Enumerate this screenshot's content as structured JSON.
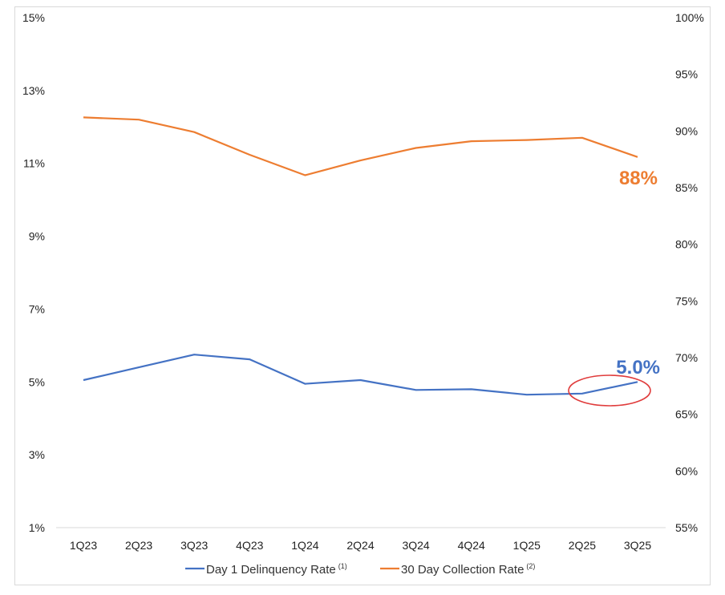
{
  "chart_data": {
    "type": "line",
    "categories": [
      "1Q23",
      "2Q23",
      "3Q23",
      "4Q23",
      "1Q24",
      "2Q24",
      "3Q24",
      "4Q24",
      "1Q25",
      "2Q25",
      "3Q25"
    ],
    "y_left": {
      "ticks": [
        "15%",
        "13%",
        "11%",
        "9%",
        "7%",
        "5%",
        "3%",
        "1%"
      ],
      "range": [
        1,
        15
      ]
    },
    "y_right": {
      "ticks": [
        "100%",
        "95%",
        "90%",
        "85%",
        "80%",
        "75%",
        "70%",
        "65%",
        "60%",
        "55%"
      ],
      "range": [
        55,
        100
      ]
    },
    "series": [
      {
        "name": "Day 1 Delinquency Rate",
        "footnote": "(1)",
        "axis": "left",
        "color": "#4472C4",
        "values": [
          5.05,
          5.4,
          5.75,
          5.62,
          4.95,
          5.05,
          4.78,
          4.8,
          4.65,
          4.68,
          5.0
        ],
        "end_label": "5.0%"
      },
      {
        "name": "30 Day Collection Rate",
        "footnote": "(2)",
        "axis": "right",
        "color": "#ED7D31",
        "values": [
          91.2,
          91.0,
          89.9,
          87.9,
          86.1,
          87.4,
          88.5,
          89.1,
          89.2,
          89.4,
          87.7
        ],
        "end_label": "88%"
      }
    ],
    "annotation": {
      "type": "circle",
      "color": "#E03C3C",
      "category": "2Q25-3Q25"
    },
    "legend_position": "bottom",
    "grid": false
  }
}
